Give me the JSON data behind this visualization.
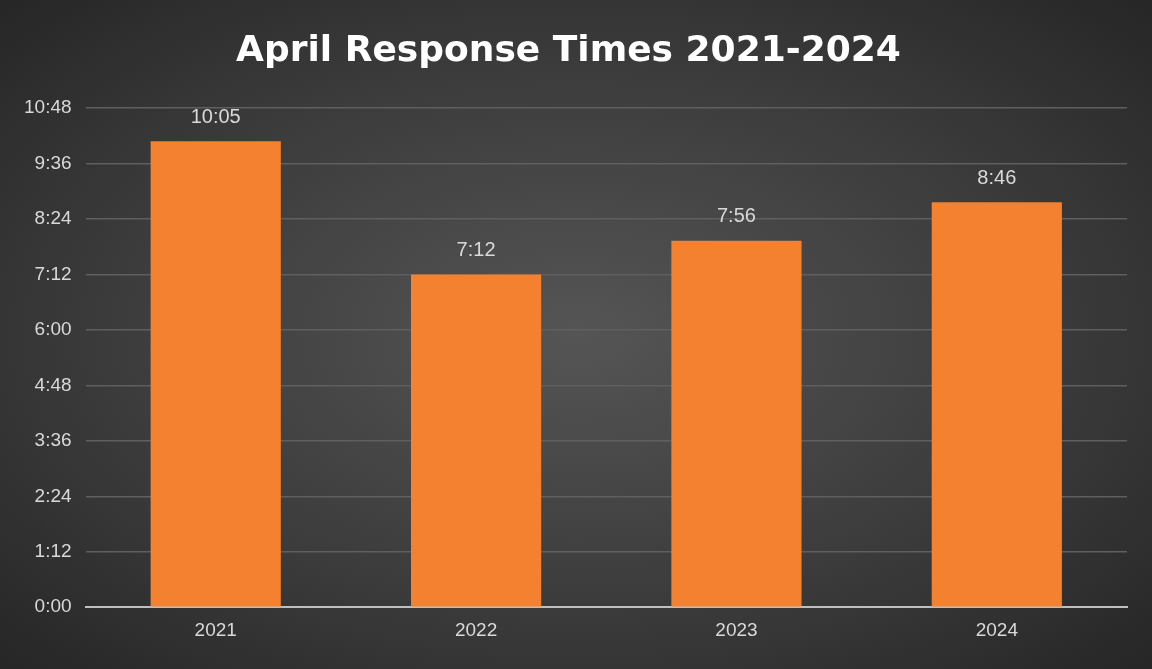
{
  "chart_data": {
    "type": "bar",
    "title": "April Response Times 2021-2024",
    "categories": [
      "2021",
      "2022",
      "2023",
      "2024"
    ],
    "values": [
      10.0833,
      7.2,
      7.9333,
      8.7667
    ],
    "value_labels": [
      "10:05",
      "7:12",
      "7:56",
      "8:46"
    ],
    "color": "#f4812f",
    "ylim": [
      0,
      10.8
    ],
    "yticks": [
      {
        "value": 0,
        "label": "0:00"
      },
      {
        "value": 1.2,
        "label": "1:12"
      },
      {
        "value": 2.4,
        "label": "2:24"
      },
      {
        "value": 3.6,
        "label": "3:36"
      },
      {
        "value": 4.8,
        "label": "4:48"
      },
      {
        "value": 6,
        "label": "6:00"
      },
      {
        "value": 7.2,
        "label": "7:12"
      },
      {
        "value": 8.4,
        "label": "8:24"
      },
      {
        "value": 9.6,
        "label": "9:36"
      },
      {
        "value": 10.8,
        "label": "10:48"
      }
    ],
    "grid": "y",
    "legend": false
  }
}
